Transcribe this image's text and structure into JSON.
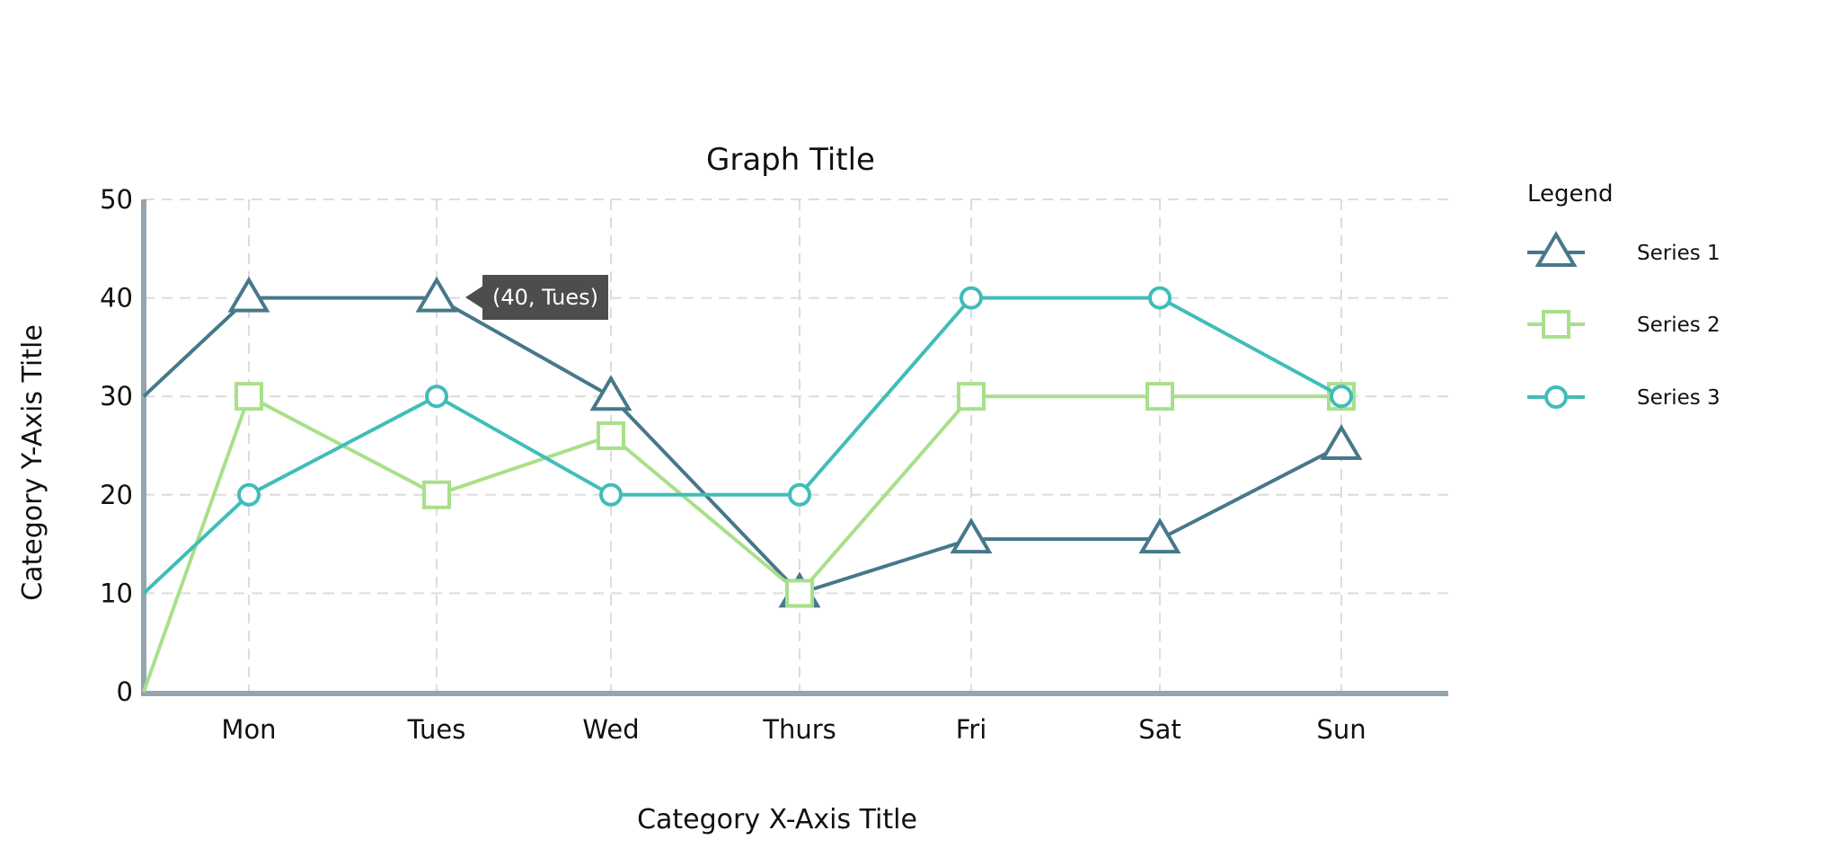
{
  "chart_data": {
    "type": "line",
    "title": "Graph Title",
    "xlabel": "Category X-Axis Title",
    "ylabel": "Category Y-Axis Title",
    "categories": [
      "Mon",
      "Tues",
      "Wed",
      "Thurs",
      "Fri",
      "Sat",
      "Sun"
    ],
    "ylim": [
      0,
      50
    ],
    "yticks": [
      0,
      10,
      20,
      30,
      40,
      50
    ],
    "grid": true,
    "legend_title": "Legend",
    "legend_position": "right",
    "series": [
      {
        "name": "Series 1",
        "marker": "triangle",
        "color": "#46788a",
        "start_value": 30,
        "values": [
          40,
          40,
          30,
          10,
          15.5,
          15.5,
          25
        ]
      },
      {
        "name": "Series 2",
        "marker": "square",
        "color": "#a8e08a",
        "start_value": 0,
        "values": [
          30,
          20,
          26,
          10,
          30,
          30,
          30
        ]
      },
      {
        "name": "Series 3",
        "marker": "circle",
        "color": "#40bdb8",
        "start_value": 10,
        "values": [
          20,
          30,
          20,
          20,
          40,
          40,
          30
        ]
      }
    ],
    "tooltip": {
      "text": "(40, Tues)",
      "series": 0,
      "category": "Tues"
    }
  }
}
